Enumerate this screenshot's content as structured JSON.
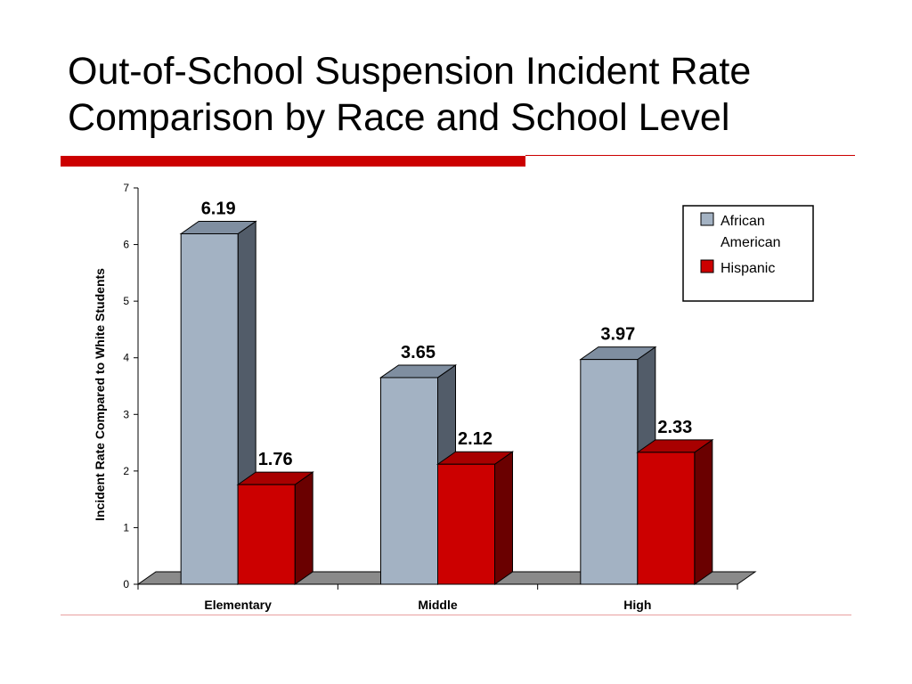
{
  "slide": {
    "title_line1": "Out-of-School Suspension Incident Rate",
    "title_line2": "Comparison by Race and School Level"
  },
  "colors": {
    "accent": "#cc0000",
    "african_american_front": "#a3b2c3",
    "african_american_top": "#7f8ea0",
    "african_american_side": "#525c69",
    "hispanic_front": "#cc0000",
    "hispanic_top": "#a80000",
    "hispanic_side": "#6a0000",
    "floor": "#8a8a8a"
  },
  "chart_data": {
    "type": "bar",
    "categories": [
      "Elementary",
      "Middle",
      "High"
    ],
    "series": [
      {
        "name_line1": "African",
        "name_line2": "American",
        "values": [
          6.19,
          3.65,
          3.97
        ],
        "labels": [
          "6.19",
          "3.65",
          "3.97"
        ]
      },
      {
        "name_line1": "Hispanic",
        "name_line2": "",
        "values": [
          1.76,
          2.12,
          2.33
        ],
        "labels": [
          "1.76",
          "2.12",
          "2.33"
        ]
      }
    ],
    "ylabel": "Incident Rate Compared to White Students",
    "ylim": [
      0,
      7
    ],
    "yticks": [
      0,
      1,
      2,
      3,
      4,
      5,
      6,
      7
    ],
    "legend_position": "top-right",
    "style": "3d-clustered-column",
    "grid": false
  }
}
